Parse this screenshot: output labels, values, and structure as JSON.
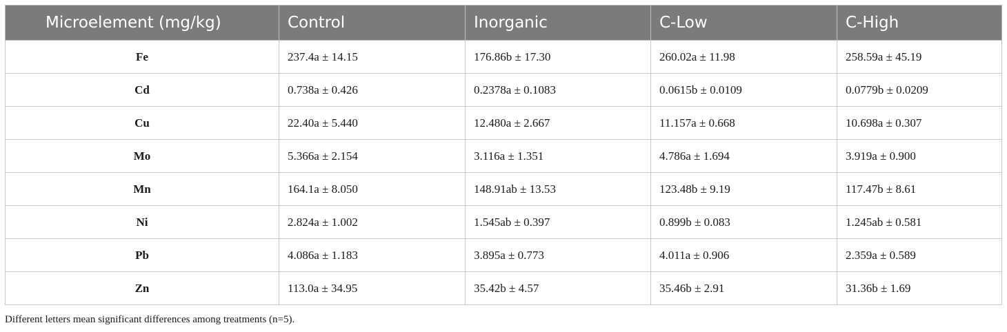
{
  "table": {
    "headers": [
      "Microelement (mg/kg)",
      "Control",
      "Inorganic",
      "C-Low",
      "C-High"
    ],
    "rows": [
      {
        "element": "Fe",
        "values": [
          "237.4a ± 14.15",
          "176.86b ± 17.30",
          "260.02a ± 11.98",
          "258.59a ± 45.19"
        ]
      },
      {
        "element": "Cd",
        "values": [
          "0.738a ± 0.426",
          "0.2378a ± 0.1083",
          "0.0615b ± 0.0109",
          "0.0779b ± 0.0209"
        ]
      },
      {
        "element": "Cu",
        "values": [
          "22.40a ± 5.440",
          "12.480a ± 2.667",
          "11.157a ± 0.668",
          "10.698a ± 0.307"
        ]
      },
      {
        "element": "Mo",
        "values": [
          "5.366a ± 2.154",
          "3.116a ± 1.351",
          "4.786a ± 1.694",
          "3.919a ± 0.900"
        ]
      },
      {
        "element": "Mn",
        "values": [
          "164.1a ± 8.050",
          "148.91ab ± 13.53",
          "123.48b ± 9.19",
          "117.47b ± 8.61"
        ]
      },
      {
        "element": "Ni",
        "values": [
          "2.824a ± 1.002",
          "1.545ab ± 0.397",
          "0.899b ± 0.083",
          "1.245ab ± 0.581"
        ]
      },
      {
        "element": "Pb",
        "values": [
          "4.086a ± 1.183",
          "3.895a ± 0.773",
          "4.011a ± 0.906",
          "2.359a ± 0.589"
        ]
      },
      {
        "element": "Zn",
        "values": [
          "113.0a ± 34.95",
          "35.42b ± 4.57",
          "35.46b ± 2.91",
          "31.36b ± 1.69"
        ]
      }
    ]
  },
  "footnote": "Different letters mean significant differences among treatments (n=5)."
}
